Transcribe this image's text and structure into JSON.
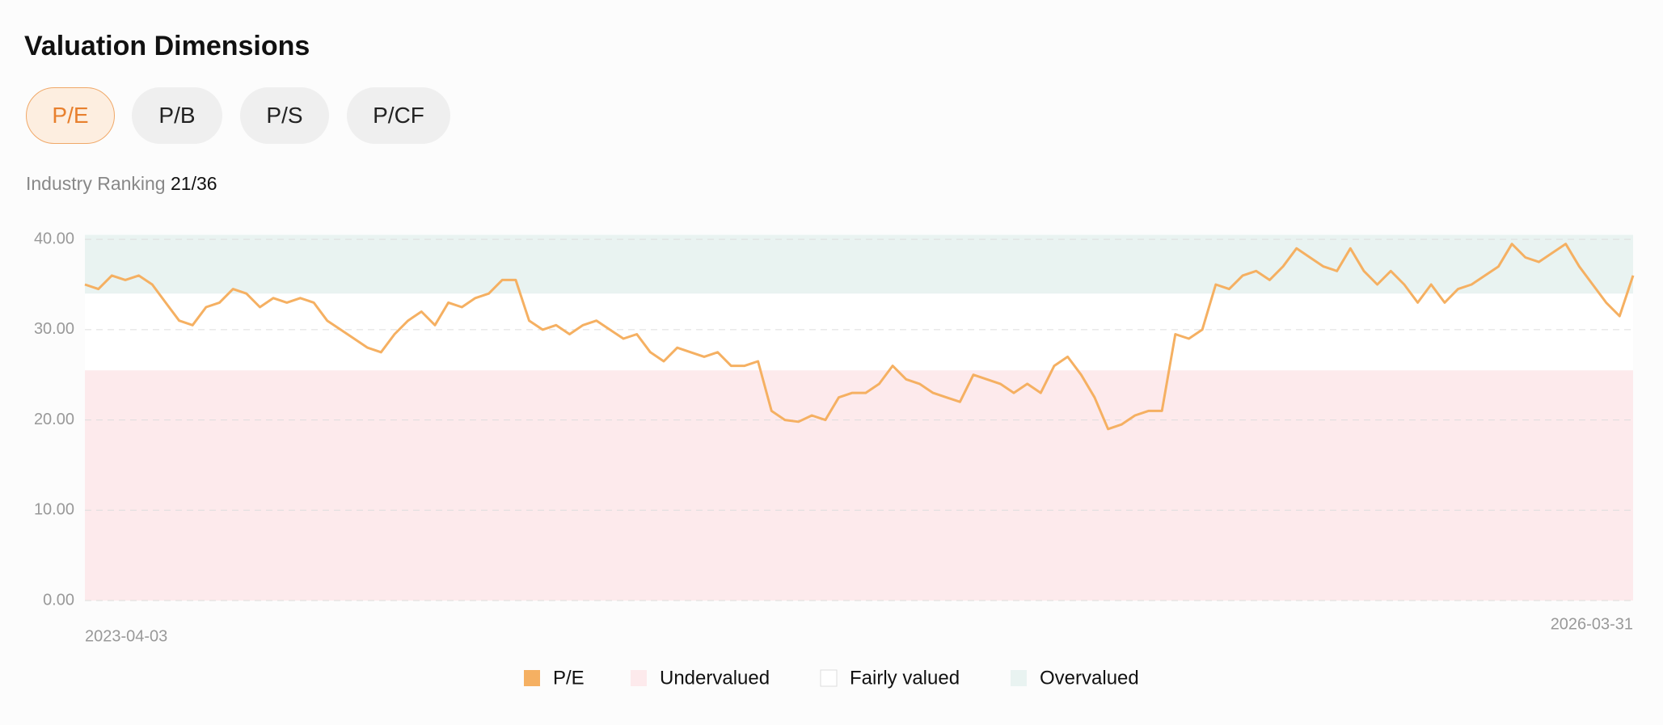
{
  "header": {
    "title": "Valuation Dimensions"
  },
  "tabs": [
    "P/E",
    "P/B",
    "P/S",
    "P/CF"
  ],
  "ranking": {
    "label": "Industry Ranking",
    "value": "21/36"
  },
  "chart_data": {
    "type": "line",
    "categories": [
      "2023-04-03",
      null,
      null,
      null,
      null,
      null,
      null,
      null,
      null,
      null,
      null,
      null,
      null,
      null,
      null,
      null,
      null,
      null,
      null,
      null,
      null,
      null,
      null,
      null,
      null,
      null,
      null,
      null,
      null,
      null,
      null,
      null,
      null,
      null,
      null,
      null,
      null,
      null,
      null,
      null,
      null,
      null,
      null,
      null,
      null,
      null,
      null,
      null,
      null,
      null,
      null,
      null,
      null,
      null,
      null,
      null,
      null,
      null,
      null,
      null,
      null,
      null,
      null,
      null,
      null,
      null,
      null,
      null,
      null,
      null,
      null,
      null,
      null,
      null,
      null,
      null,
      null,
      null,
      null,
      null,
      null,
      null,
      null,
      null,
      null,
      null,
      null,
      null,
      null,
      null,
      null,
      null,
      null,
      null,
      null,
      null,
      null,
      null,
      null,
      null,
      null,
      null,
      null,
      null,
      null,
      null,
      null,
      null,
      null,
      null,
      null,
      null,
      null,
      null,
      null,
      "2026-03-31"
    ],
    "series": [
      {
        "name": "P/E",
        "color": "#f5b062",
        "values": [
          35,
          34.5,
          36,
          35.5,
          36,
          35,
          33,
          31,
          30.5,
          32.5,
          33,
          34.5,
          34,
          32.5,
          33.5,
          33,
          33.5,
          33,
          31,
          30,
          29,
          28,
          27.5,
          29.5,
          31,
          32,
          30.5,
          33,
          32.5,
          33.5,
          34,
          35.5,
          35.5,
          31,
          30,
          30.5,
          29.5,
          30.5,
          31,
          30,
          29,
          29.5,
          27.5,
          26.5,
          28,
          27.5,
          27,
          27.5,
          26,
          26,
          26.5,
          21,
          20,
          19.8,
          20.5,
          20,
          22.5,
          23,
          23,
          24,
          26,
          24.5,
          24,
          23,
          22.5,
          22,
          25,
          24.5,
          24,
          23,
          24,
          23,
          26,
          27,
          25,
          22.5,
          19,
          19.5,
          20.5,
          21,
          21,
          29.5,
          29,
          30,
          35,
          34.5,
          36,
          36.5,
          35.5,
          37,
          39,
          38,
          37,
          36.5,
          39,
          36.5,
          35,
          36.5,
          35,
          33,
          35,
          33,
          34.5,
          35,
          36,
          37,
          39.5,
          38,
          37.5,
          38.5,
          39.5,
          37,
          35,
          33,
          31.5,
          36
        ]
      }
    ],
    "bands": [
      {
        "name": "Undervalued",
        "color": "#fdeaec",
        "range": [
          0,
          25.5
        ]
      },
      {
        "name": "Fairly valued",
        "color": "#ffffff",
        "range": [
          25.5,
          34
        ]
      },
      {
        "name": "Overvalued",
        "color": "#e9f3f1",
        "range": [
          34,
          40.5
        ]
      }
    ],
    "ylim": [
      0,
      41
    ],
    "yticks": [
      {
        "value": 0,
        "label": "0.00"
      },
      {
        "value": 10,
        "label": "10.00"
      },
      {
        "value": 20,
        "label": "20.00"
      },
      {
        "value": 30,
        "label": "30.00"
      },
      {
        "value": 40,
        "label": "40.00"
      }
    ],
    "grid": true
  }
}
